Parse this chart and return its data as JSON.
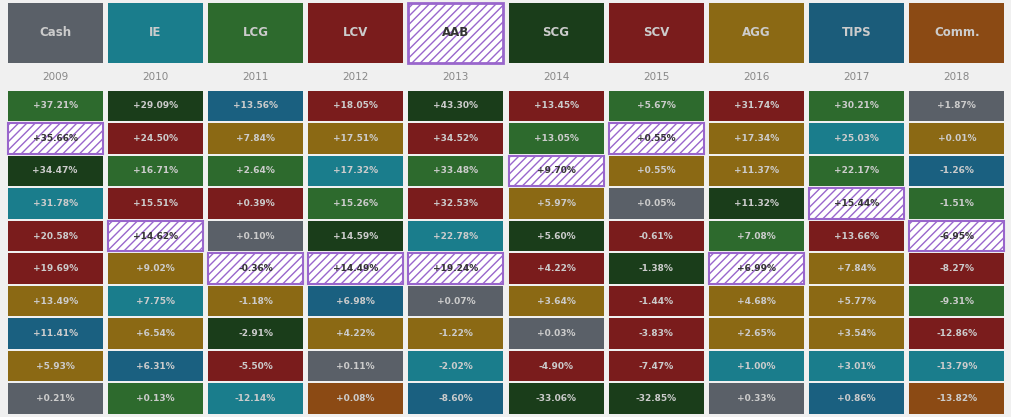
{
  "headers": [
    "Cash",
    "IE",
    "LCG",
    "LCV",
    "AAB",
    "SCG",
    "SCV",
    "AGG",
    "TIPS",
    "Comm."
  ],
  "header_colors": [
    "#5a6068",
    "#1a7d8c",
    "#2d6a2d",
    "#7a1c1c",
    "#ffffff",
    "#1a3d1a",
    "#7a1c1c",
    "#8b6914",
    "#1b5c7a",
    "#8b4a14"
  ],
  "header_hatched": [
    false,
    false,
    false,
    false,
    true,
    false,
    false,
    false,
    false,
    false
  ],
  "years": [
    "2009",
    "2010",
    "2011",
    "2012",
    "2013",
    "2014",
    "2015",
    "2016",
    "2017",
    "2018"
  ],
  "grid": [
    [
      "+37.21%",
      "+29.09%",
      "+13.56%",
      "+18.05%",
      "+43.30%",
      "+13.45%",
      "+5.67%",
      "+31.74%",
      "+30.21%",
      "+1.87%"
    ],
    [
      "+35.66%",
      "+24.50%",
      "+7.84%",
      "+17.51%",
      "+34.52%",
      "+13.05%",
      "+0.55%",
      "+17.34%",
      "+25.03%",
      "+0.01%"
    ],
    [
      "+34.47%",
      "+16.71%",
      "+2.64%",
      "+17.32%",
      "+33.48%",
      "+9.70%",
      "+0.55%",
      "+11.37%",
      "+22.17%",
      "-1.26%"
    ],
    [
      "+31.78%",
      "+15.51%",
      "+0.39%",
      "+15.26%",
      "+32.53%",
      "+5.97%",
      "+0.05%",
      "+11.32%",
      "+15.44%",
      "-1.51%"
    ],
    [
      "+20.58%",
      "+14.62%",
      "+0.10%",
      "+14.59%",
      "+22.78%",
      "+5.60%",
      "-0.61%",
      "+7.08%",
      "+13.66%",
      "-6.95%"
    ],
    [
      "+19.69%",
      "+9.02%",
      "-0.36%",
      "+14.49%",
      "+19.24%",
      "+4.22%",
      "-1.38%",
      "+6.99%",
      "+7.84%",
      "-8.27%"
    ],
    [
      "+13.49%",
      "+7.75%",
      "-1.18%",
      "+6.98%",
      "+0.07%",
      "+3.64%",
      "-1.44%",
      "+4.68%",
      "+5.77%",
      "-9.31%"
    ],
    [
      "+11.41%",
      "+6.54%",
      "-2.91%",
      "+4.22%",
      "-1.22%",
      "+0.03%",
      "-3.83%",
      "+2.65%",
      "+3.54%",
      "-12.86%"
    ],
    [
      "+5.93%",
      "+6.31%",
      "-5.50%",
      "+0.11%",
      "-2.02%",
      "-4.90%",
      "-7.47%",
      "+1.00%",
      "+3.01%",
      "-13.79%"
    ],
    [
      "+0.21%",
      "+0.13%",
      "-12.14%",
      "+0.08%",
      "-8.60%",
      "-33.06%",
      "-32.85%",
      "+0.33%",
      "+0.86%",
      "-13.82%"
    ]
  ],
  "grid_colors": [
    [
      "#2d6a2d",
      "#1a3d1a",
      "#1a6080",
      "#7a1c1c",
      "#1a3d1a",
      "#7a1c1c",
      "#2d6a2d",
      "#7a1c1c",
      "#2d6a2d",
      "#5a6068"
    ],
    [
      "#HATCHED",
      "#7a1c1c",
      "#8b6914",
      "#8b6914",
      "#7a1c1c",
      "#2d6a2d",
      "#HATCHED",
      "#8b6914",
      "#1a7d8c",
      "#8b6914"
    ],
    [
      "#1a3d1a",
      "#2d6a2d",
      "#2d6a2d",
      "#1a7d8c",
      "#2d6a2d",
      "#HATCHED",
      "#8b6914",
      "#8b6914",
      "#2d6a2d",
      "#1a6080"
    ],
    [
      "#1a7d8c",
      "#7a1c1c",
      "#7a1c1c",
      "#2d6a2d",
      "#7a1c1c",
      "#8b6914",
      "#5a6068",
      "#1a3d1a",
      "#HATCHED",
      "#2d6a2d"
    ],
    [
      "#7a1c1c",
      "#HATCHED",
      "#5a6068",
      "#1a3d1a",
      "#1a7d8c",
      "#1a3d1a",
      "#7a1c1c",
      "#2d6a2d",
      "#7a1c1c",
      "#HATCHED"
    ],
    [
      "#7a1c1c",
      "#8b6914",
      "#HATCHED",
      "#HATCHED",
      "#HATCHED",
      "#7a1c1c",
      "#1a3d1a",
      "#HATCHED",
      "#8b6914",
      "#7a1c1c"
    ],
    [
      "#8b6914",
      "#1a7d8c",
      "#8b6914",
      "#1a6080",
      "#5a6068",
      "#8b6914",
      "#7a1c1c",
      "#8b6914",
      "#8b6914",
      "#2d6a2d"
    ],
    [
      "#1a6080",
      "#8b6914",
      "#1a3d1a",
      "#8b6914",
      "#8b6914",
      "#5a6068",
      "#7a1c1c",
      "#8b6914",
      "#8b6914",
      "#7a1c1c"
    ],
    [
      "#8b6914",
      "#1a6080",
      "#7a1c1c",
      "#5a6068",
      "#1a7d8c",
      "#7a1c1c",
      "#7a1c1c",
      "#1a7d8c",
      "#1a7d8c",
      "#1a7d8c"
    ],
    [
      "#5a6068",
      "#2d6a2d",
      "#1a7d8c",
      "#8b4a14",
      "#1a6080",
      "#1a3d1a",
      "#1a3d1a",
      "#5a6068",
      "#1a6080",
      "#8b4a14"
    ]
  ],
  "bg_color": "#f0f0f0",
  "border_color": "#aaaaaa",
  "hatch_border_color": "#9966cc",
  "year_color": "#888888",
  "text_light": "#cccccc",
  "text_dark": "#222222"
}
